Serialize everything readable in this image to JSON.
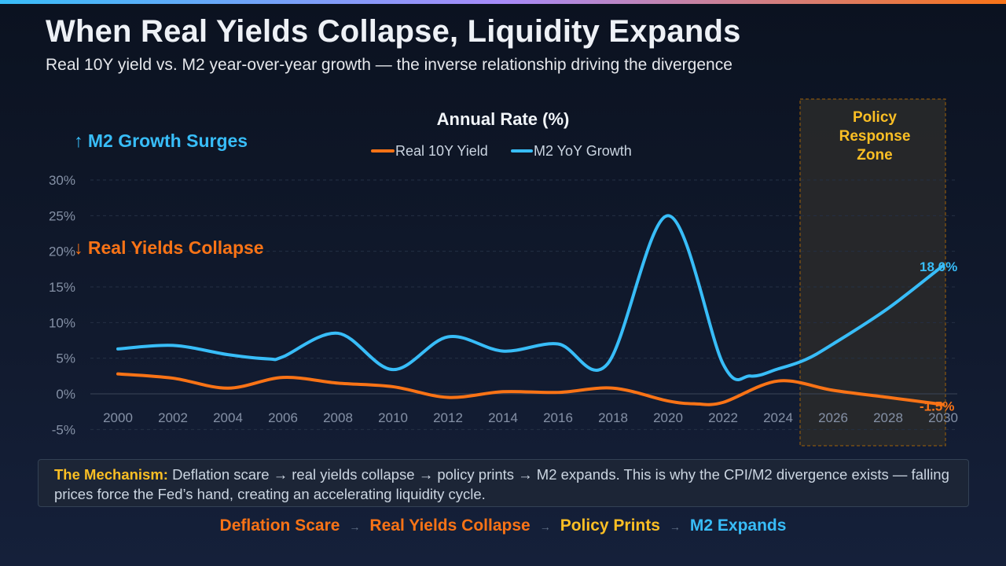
{
  "header": {
    "title": "When Real Yields Collapse, Liquidity Expands",
    "subtitle": "Real 10Y yield vs. M2 year-over-year growth — the inverse relationship driving the divergence"
  },
  "colors": {
    "orange": "#f97316",
    "blue": "#38bdf8",
    "gold": "#fbbf24"
  },
  "chart_data": {
    "type": "line",
    "title": "Annual Rate (%)",
    "legend_position": "top-center",
    "grid": true,
    "ylim": [
      -5,
      30
    ],
    "xlim": [
      2000,
      2030
    ],
    "y_ticks": [
      "30%",
      "25%",
      "20%",
      "15%",
      "10%",
      "5%",
      "0%",
      "-5%"
    ],
    "x_ticks": [
      "2000",
      "2002",
      "2004",
      "2006",
      "2008",
      "2010",
      "2012",
      "2014",
      "2016",
      "2018",
      "2020",
      "2022",
      "2024",
      "2026",
      "2028",
      "2030"
    ],
    "series": [
      {
        "name": "Real 10Y Yield",
        "color": "#f97316",
        "x": [
          2000,
          2002,
          2004,
          2006,
          2008,
          2010,
          2012,
          2014,
          2016,
          2018,
          2020,
          2021,
          2022,
          2024,
          2026,
          2028,
          2030
        ],
        "y": [
          2.8,
          2.2,
          0.8,
          2.3,
          1.5,
          1.0,
          -0.5,
          0.3,
          0.2,
          0.8,
          -1.0,
          -1.4,
          -1.2,
          1.8,
          0.5,
          -0.5,
          -1.5
        ],
        "end_label": "-1.5%"
      },
      {
        "name": "M2 YoY Growth",
        "color": "#38bdf8",
        "x": [
          2000,
          2002,
          2004,
          2005.5,
          2006,
          2008,
          2010,
          2012,
          2014,
          2016,
          2017.8,
          2020,
          2022,
          2023,
          2024,
          2025,
          2026,
          2028,
          2030
        ],
        "y": [
          6.3,
          6.8,
          5.5,
          4.9,
          5.2,
          8.5,
          3.4,
          8.0,
          6.0,
          7.0,
          4.2,
          25.0,
          4.2,
          2.5,
          3.5,
          4.8,
          7.0,
          12.0,
          18.0
        ],
        "end_label": "18.0%"
      }
    ],
    "annotations": {
      "zone": {
        "label_lines": [
          "Policy",
          "Response",
          "Zone"
        ],
        "from": 2025,
        "to": 2031
      },
      "up_label": "↑ M2 Growth Surges",
      "down_label": "↓ Real Yields Collapse"
    }
  },
  "mechanism": {
    "label": "The Mechanism:",
    "text": " Deflation scare → real yields collapse → policy prints → M2 expands. This is why the CPI/M2 divergence exists — falling prices force the Fed’s hand, creating an accelerating liquidity cycle."
  },
  "flow": {
    "steps": [
      "Deflation Scare",
      "Real Yields Collapse",
      "Policy Prints",
      "M2 Expands"
    ],
    "arrow": "→"
  }
}
